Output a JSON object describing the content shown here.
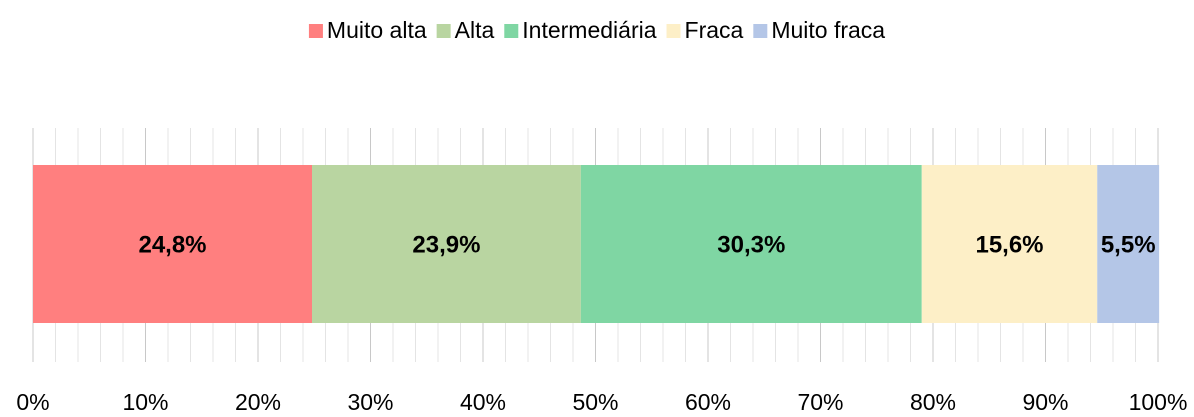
{
  "chart_data": {
    "type": "stacked_barh",
    "categories": [
      null
    ],
    "series": [
      {
        "name": "Muito alta",
        "color": "#ff7f7f",
        "values": [
          24.8
        ],
        "value_labels": [
          "24,8%"
        ]
      },
      {
        "name": "Alta",
        "color": "#b9d5a1",
        "values": [
          23.9
        ],
        "value_labels": [
          "23,9%"
        ]
      },
      {
        "name": "Intermediária",
        "color": "#7fd6a3",
        "values": [
          30.3
        ],
        "value_labels": [
          "30,3%"
        ]
      },
      {
        "name": "Fraca",
        "color": "#fdefc7",
        "values": [
          15.6
        ],
        "value_labels": [
          "15,6%"
        ]
      },
      {
        "name": "Muito fraca",
        "color": "#b4c6e7",
        "values": [
          5.5
        ],
        "value_labels": [
          "5,5%"
        ]
      }
    ],
    "xlim": [
      0,
      100
    ],
    "xticks": [
      {
        "value": 0,
        "label": "0%"
      },
      {
        "value": 10,
        "label": "10%"
      },
      {
        "value": 20,
        "label": "20%"
      },
      {
        "value": 30,
        "label": "30%"
      },
      {
        "value": 40,
        "label": "40%"
      },
      {
        "value": 50,
        "label": "50%"
      },
      {
        "value": 60,
        "label": "60%"
      },
      {
        "value": 70,
        "label": "70%"
      },
      {
        "value": 80,
        "label": "80%"
      },
      {
        "value": 90,
        "label": "90%"
      },
      {
        "value": 100,
        "label": "100%"
      }
    ],
    "xticks_minor": [
      2,
      4,
      6,
      8,
      12,
      14,
      16,
      18,
      22,
      24,
      26,
      28,
      32,
      34,
      36,
      38,
      42,
      44,
      46,
      48,
      52,
      54,
      56,
      58,
      62,
      64,
      66,
      68,
      72,
      74,
      76,
      78,
      82,
      84,
      86,
      88,
      92,
      94,
      96,
      98
    ],
    "grid": true,
    "legend": "top"
  }
}
